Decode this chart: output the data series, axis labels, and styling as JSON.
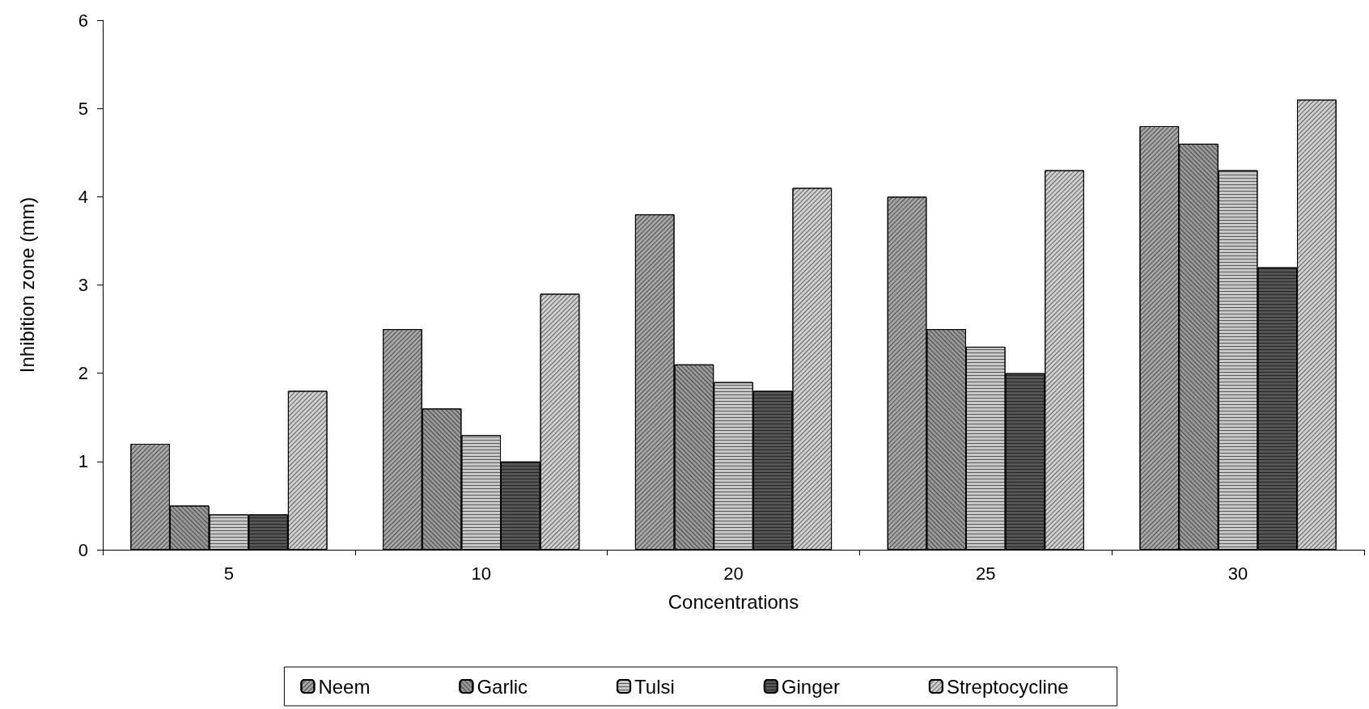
{
  "chart_data": {
    "type": "bar",
    "xlabel": "Concentrations",
    "ylabel": "Inhibition zone (mm)",
    "categories": [
      "5",
      "10",
      "20",
      "25",
      "30"
    ],
    "series": [
      {
        "name": "Neem",
        "color": "#a6a6a6",
        "values": [
          1.2,
          2.5,
          3.8,
          4.0,
          4.8
        ]
      },
      {
        "name": "Garlic",
        "color": "#999999",
        "values": [
          0.5,
          1.6,
          2.1,
          2.5,
          4.6
        ]
      },
      {
        "name": "Tulsi",
        "color": "#c8c8c8",
        "values": [
          0.4,
          1.3,
          1.9,
          2.3,
          4.3
        ]
      },
      {
        "name": "Ginger",
        "color": "#555555",
        "values": [
          0.4,
          1.0,
          1.8,
          2.0,
          3.2
        ]
      },
      {
        "name": "Streptocycline",
        "color": "#d0d0d0",
        "values": [
          1.8,
          2.9,
          4.1,
          4.3,
          5.1
        ]
      }
    ],
    "ylim": [
      0,
      6
    ],
    "yticks": [
      0,
      1,
      2,
      3,
      4,
      5,
      6
    ],
    "grid": false,
    "legend": "bottom"
  }
}
